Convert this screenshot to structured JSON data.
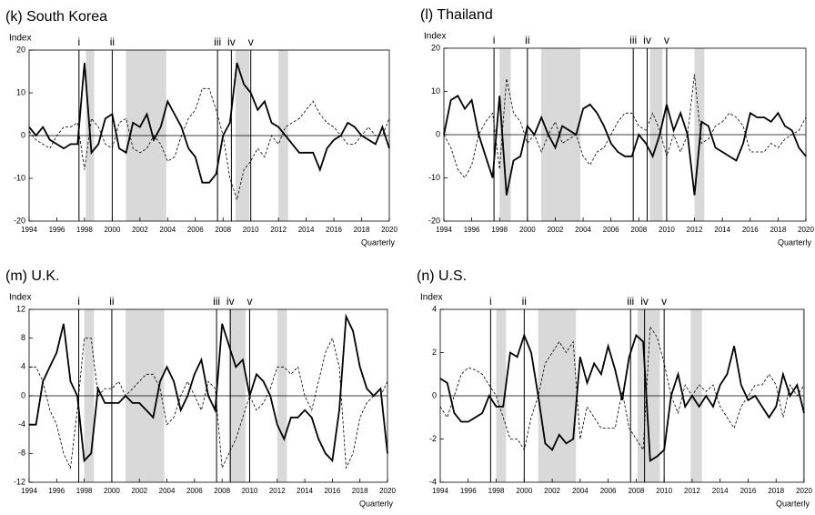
{
  "chart_data": [
    {
      "type": "line",
      "title": "(k) South Korea",
      "ylabel": "Index",
      "xlabel": "Quarterly",
      "x": [
        1994,
        1994.5,
        1995,
        1995.5,
        1996,
        1996.5,
        1997,
        1997.5,
        1998,
        1998.5,
        1999,
        1999.5,
        2000,
        2000.5,
        2001,
        2001.5,
        2002,
        2002.5,
        2003,
        2003.5,
        2004,
        2004.5,
        2005,
        2005.5,
        2006,
        2006.5,
        2007,
        2007.5,
        2008,
        2008.5,
        2009,
        2009.5,
        2010,
        2010.5,
        2011,
        2011.5,
        2012,
        2012.5,
        2013,
        2013.5,
        2014,
        2014.5,
        2015,
        2015.5,
        2016,
        2016.5,
        2017,
        2017.5,
        2018,
        2018.5,
        2019,
        2019.5,
        2020
      ],
      "series": [
        {
          "color": "#000000",
          "dash": false,
          "values": [
            2,
            0,
            2,
            -1,
            -2,
            -3,
            -2,
            -2,
            17,
            -4,
            -2,
            4,
            5,
            -3,
            -4,
            3,
            2,
            5,
            -1,
            2,
            8,
            5,
            2,
            -3,
            -5,
            -11,
            -11,
            -9,
            0,
            3,
            17,
            12,
            10,
            6,
            8,
            3,
            2,
            0,
            -2,
            -4,
            -4,
            -4,
            -8,
            -3,
            -1,
            0,
            3,
            2,
            0,
            -1,
            -2,
            2,
            -3
          ]
        },
        {
          "color": "#000000",
          "dash": true,
          "values": [
            1,
            -1,
            -2,
            -3,
            0,
            2,
            2,
            3,
            -8,
            4,
            2,
            -2,
            -3,
            3,
            4,
            -3,
            -4,
            -3,
            0,
            -2,
            -6,
            -5,
            0,
            4,
            6,
            11,
            11,
            6,
            0,
            -10,
            -15,
            -8,
            -6,
            -3,
            -5,
            0,
            -2,
            2,
            3,
            4,
            6,
            8,
            5,
            3,
            2,
            0,
            -2,
            -2,
            0,
            2,
            0,
            0,
            4
          ]
        }
      ],
      "shaded": [
        [
          1998.1,
          1998.7
        ],
        [
          2001,
          2003.9
        ],
        [
          2008.9,
          2009.9
        ],
        [
          2012,
          2012.7
        ]
      ],
      "events": [
        {
          "label": "i",
          "x": 1997.6
        },
        {
          "label": "ii",
          "x": 2000
        },
        {
          "label": "iii",
          "x": 2007.6
        },
        {
          "label": "iv",
          "x": 2008.6
        },
        {
          "label": "v",
          "x": 2010
        }
      ],
      "xlim": [
        1994,
        2020
      ],
      "xticks": [
        1994,
        1996,
        1998,
        2000,
        2002,
        2004,
        2006,
        2008,
        2010,
        2012,
        2014,
        2016,
        2018,
        2020
      ],
      "ylim": [
        -20,
        20
      ],
      "yticks": [
        -20,
        -10,
        0,
        10,
        20
      ]
    },
    {
      "type": "line",
      "title": "(l) Thailand",
      "ylabel": "Index",
      "xlabel": "Quarterly",
      "x": [
        1994,
        1994.5,
        1995,
        1995.5,
        1996,
        1996.5,
        1997,
        1997.5,
        1998,
        1998.5,
        1999,
        1999.5,
        2000,
        2000.5,
        2001,
        2001.5,
        2002,
        2002.5,
        2003,
        2003.5,
        2004,
        2004.5,
        2005,
        2005.5,
        2006,
        2006.5,
        2007,
        2007.5,
        2008,
        2008.5,
        2009,
        2009.5,
        2010,
        2010.5,
        2011,
        2011.5,
        2012,
        2012.5,
        2013,
        2013.5,
        2014,
        2014.5,
        2015,
        2015.5,
        2016,
        2016.5,
        2017,
        2017.5,
        2018,
        2018.5,
        2019,
        2019.5,
        2020
      ],
      "series": [
        {
          "color": "#000000",
          "dash": false,
          "values": [
            0,
            8,
            9,
            6,
            8,
            0,
            -5,
            -10,
            9,
            -14,
            -6,
            -5,
            2,
            0,
            4,
            0,
            -3,
            2,
            1,
            0,
            6,
            7,
            5,
            2,
            -2,
            -4,
            -5,
            -5,
            0,
            -2,
            -5,
            0,
            7,
            1,
            5,
            0,
            -14,
            3,
            2,
            -3,
            -4,
            -5,
            -6,
            -2,
            5,
            4,
            4,
            3,
            5,
            2,
            1,
            -3,
            -5
          ]
        },
        {
          "color": "#000000",
          "dash": true,
          "values": [
            0,
            -3,
            -8,
            -10,
            -7,
            0,
            3,
            5,
            -8,
            13,
            5,
            3,
            -2,
            0,
            -4,
            0,
            3,
            -2,
            -1,
            0,
            -5,
            -7,
            -4,
            -3,
            0,
            3,
            5,
            5,
            2,
            1,
            5,
            1,
            -5,
            0,
            -4,
            0,
            14,
            -2,
            -1,
            2,
            3,
            5,
            4,
            2,
            -4,
            -4,
            -4,
            -2,
            -3,
            -1,
            0,
            1,
            4
          ]
        }
      ],
      "shaded": [
        [
          1998,
          1998.8
        ],
        [
          2001,
          2003.8
        ],
        [
          2008.8,
          2009.7
        ],
        [
          2012,
          2012.7
        ]
      ],
      "events": [
        {
          "label": "i",
          "x": 1997.6
        },
        {
          "label": "ii",
          "x": 2000
        },
        {
          "label": "iii",
          "x": 2007.6
        },
        {
          "label": "iv",
          "x": 2008.6
        },
        {
          "label": "v",
          "x": 2010
        }
      ],
      "xlim": [
        1994,
        2020
      ],
      "xticks": [
        1994,
        1996,
        1998,
        2000,
        2002,
        2004,
        2006,
        2008,
        2010,
        2012,
        2014,
        2016,
        2018,
        2020
      ],
      "ylim": [
        -20,
        20
      ],
      "yticks": [
        -20,
        -10,
        0,
        10,
        20
      ]
    },
    {
      "type": "line",
      "title": "(m) U.K.",
      "ylabel": "Index",
      "xlabel": "Quarterly",
      "x": [
        1994,
        1994.5,
        1995,
        1995.5,
        1996,
        1996.5,
        1997,
        1997.5,
        1998,
        1998.5,
        1999,
        1999.5,
        2000,
        2000.5,
        2001,
        2001.5,
        2002,
        2002.5,
        2003,
        2003.5,
        2004,
        2004.5,
        2005,
        2005.5,
        2006,
        2006.5,
        2007,
        2007.5,
        2008,
        2008.5,
        2009,
        2009.5,
        2010,
        2010.5,
        2011,
        2011.5,
        2012,
        2012.5,
        2013,
        2013.5,
        2014,
        2014.5,
        2015,
        2015.5,
        2016,
        2016.5,
        2017,
        2017.5,
        2018,
        2018.5,
        2019,
        2019.5,
        2020
      ],
      "series": [
        {
          "color": "#000000",
          "dash": false,
          "values": [
            -4,
            -4,
            2,
            4,
            6,
            10,
            2,
            0,
            -9,
            -8,
            1,
            -1,
            -1,
            -1,
            0,
            -1,
            -1,
            -2,
            -3,
            2,
            4,
            2,
            -2,
            0,
            3,
            5,
            0,
            -2,
            10,
            7,
            4,
            5,
            0,
            3,
            2,
            0,
            -4,
            -6,
            -3,
            -3,
            -2,
            -3,
            -6,
            -8,
            -9,
            -2,
            11,
            9,
            4,
            1,
            0,
            1,
            -8
          ]
        },
        {
          "color": "#000000",
          "dash": true,
          "values": [
            4,
            4,
            2,
            -2,
            -4,
            -8,
            -10,
            -2,
            8,
            8,
            0,
            1,
            1,
            2,
            0,
            1,
            2,
            3,
            3,
            1,
            -4,
            -3,
            0,
            2,
            0,
            -2,
            2,
            1,
            -10,
            -8,
            -6,
            -3,
            0,
            -2,
            -1,
            1,
            4,
            4,
            3,
            4,
            0,
            -2,
            2,
            6,
            8,
            4,
            -10,
            -8,
            -3,
            -1,
            0,
            0,
            2
          ]
        }
      ],
      "shaded": [
        [
          1998,
          1998.7
        ],
        [
          2001,
          2003.8
        ],
        [
          2008.5,
          2009.7
        ],
        [
          2012,
          2012.7
        ]
      ],
      "events": [
        {
          "label": "i",
          "x": 1997.6
        },
        {
          "label": "ii",
          "x": 2000
        },
        {
          "label": "iii",
          "x": 2007.6
        },
        {
          "label": "iv",
          "x": 2008.6
        },
        {
          "label": "v",
          "x": 2010
        }
      ],
      "xlim": [
        1994,
        2020
      ],
      "xticks": [
        1994,
        1996,
        1998,
        2000,
        2002,
        2004,
        2006,
        2008,
        2010,
        2012,
        2014,
        2016,
        2018,
        2020
      ],
      "ylim": [
        -12,
        12
      ],
      "yticks": [
        -12,
        -8,
        -4,
        0,
        4,
        8,
        12
      ]
    },
    {
      "type": "line",
      "title": "(n) U.S.",
      "ylabel": "Index",
      "xlabel": "Quarterly",
      "x": [
        1994,
        1994.5,
        1995,
        1995.5,
        1996,
        1996.5,
        1997,
        1997.5,
        1998,
        1998.5,
        1999,
        1999.5,
        2000,
        2000.5,
        2001,
        2001.5,
        2002,
        2002.5,
        2003,
        2003.5,
        2004,
        2004.5,
        2005,
        2005.5,
        2006,
        2006.5,
        2007,
        2007.5,
        2008,
        2008.5,
        2009,
        2009.5,
        2010,
        2010.5,
        2011,
        2011.5,
        2012,
        2012.5,
        2013,
        2013.5,
        2014,
        2014.5,
        2015,
        2015.5,
        2016,
        2016.5,
        2017,
        2017.5,
        2018,
        2018.5,
        2019,
        2019.5,
        2020
      ],
      "series": [
        {
          "color": "#000000",
          "dash": false,
          "values": [
            0.8,
            0.6,
            -0.8,
            -1.2,
            -1.2,
            -1,
            -0.8,
            0,
            -0.5,
            -0.5,
            2,
            1.8,
            2.8,
            2,
            0,
            -2.2,
            -2.5,
            -1.8,
            -2.2,
            -2,
            1.8,
            0.6,
            1.5,
            1,
            2.3,
            1.2,
            -0.2,
            1.8,
            2.8,
            2.5,
            -3,
            -2.8,
            -2.5,
            0,
            1,
            -0.5,
            0,
            -0.5,
            0,
            -0.5,
            0.5,
            1,
            2.3,
            0.5,
            -0.2,
            0,
            -0.5,
            -1,
            -0.5,
            1,
            0,
            0.5,
            -0.8
          ]
        },
        {
          "color": "#000000",
          "dash": true,
          "values": [
            -0.5,
            -1,
            0,
            1,
            1.3,
            1.2,
            1,
            0.5,
            0,
            -1,
            -2,
            -2,
            -2.5,
            -1,
            0,
            1.5,
            2,
            2.5,
            2,
            2.5,
            -2,
            -0.5,
            -1,
            -1.5,
            -1.5,
            -1.5,
            0.2,
            -1.5,
            -2,
            -2.5,
            3.2,
            2.7,
            1.5,
            0,
            -0.8,
            0.5,
            0,
            0.5,
            0.2,
            0.5,
            -0.5,
            -1,
            -1.5,
            -0.5,
            0,
            0.5,
            0.5,
            1,
            0.5,
            -1,
            0.5,
            0,
            0.5
          ]
        }
      ],
      "shaded": [
        [
          1998,
          1998.7
        ],
        [
          2001,
          2003.7
        ],
        [
          2008.1,
          2009.7
        ],
        [
          2011.9,
          2012.7
        ],
        [
          2019.9,
          2020
        ]
      ],
      "events": [
        {
          "label": "i",
          "x": 1997.6
        },
        {
          "label": "ii",
          "x": 2000
        },
        {
          "label": "iii",
          "x": 2007.6
        },
        {
          "label": "iv",
          "x": 2008.6
        },
        {
          "label": "v",
          "x": 2010
        }
      ],
      "xlim": [
        1994,
        2020
      ],
      "xticks": [
        1994,
        1996,
        1998,
        2000,
        2002,
        2004,
        2006,
        2008,
        2010,
        2012,
        2014,
        2016,
        2018,
        2020
      ],
      "ylim": [
        -4,
        4
      ],
      "yticks": [
        -4,
        -2,
        0,
        2,
        4
      ]
    }
  ]
}
